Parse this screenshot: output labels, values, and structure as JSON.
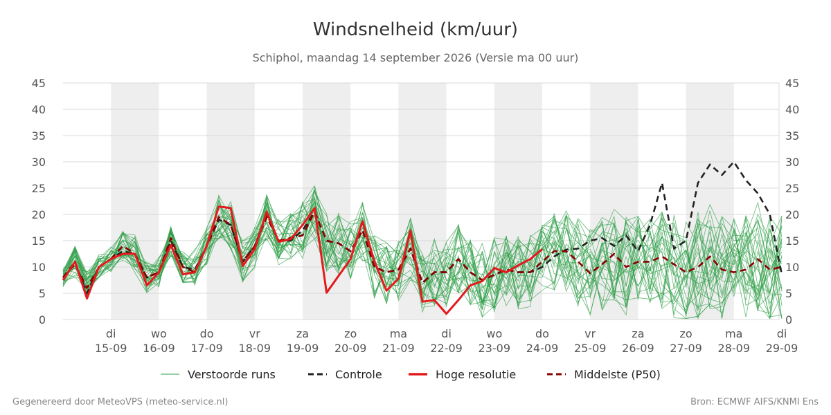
{
  "chart_data": {
    "type": "line",
    "title": "Windsnelheid (km/uur)",
    "subtitle": "Schiphol, maandag 14 september 2026 (Versie ma 00 uur)",
    "ylim": [
      0,
      45
    ],
    "yticks": [
      0,
      5,
      10,
      15,
      20,
      25,
      30,
      35,
      40,
      45
    ],
    "xlim": [
      0,
      15.5
    ],
    "day_labels": [
      {
        "x": 1,
        "top": "di",
        "bottom": "15-09"
      },
      {
        "x": 2,
        "top": "wo",
        "bottom": "16-09"
      },
      {
        "x": 3,
        "top": "do",
        "bottom": "17-09"
      },
      {
        "x": 4,
        "top": "vr",
        "bottom": "18-09"
      },
      {
        "x": 5,
        "top": "za",
        "bottom": "19-09"
      },
      {
        "x": 6,
        "top": "zo",
        "bottom": "20-09"
      },
      {
        "x": 7,
        "top": "ma",
        "bottom": "21-09"
      },
      {
        "x": 8,
        "top": "di",
        "bottom": "22-09"
      },
      {
        "x": 9,
        "top": "wo",
        "bottom": "23-09"
      },
      {
        "x": 10,
        "top": "do",
        "bottom": "24-09"
      },
      {
        "x": 11,
        "top": "vr",
        "bottom": "25-09"
      },
      {
        "x": 12,
        "top": "za",
        "bottom": "26-09"
      },
      {
        "x": 13,
        "top": "zo",
        "bottom": "27-09"
      },
      {
        "x": 14,
        "top": "ma",
        "bottom": "28-09"
      },
      {
        "x": 15,
        "top": "di",
        "bottom": "29-09"
      }
    ],
    "shaded_bands": [
      [
        1,
        2
      ],
      [
        3,
        4
      ],
      [
        5,
        6
      ],
      [
        7,
        8
      ],
      [
        9,
        10
      ],
      [
        11,
        12
      ],
      [
        13,
        14
      ]
    ],
    "grid": true,
    "legend_position": "bottom",
    "series": [
      {
        "name": "Hoge resolutie",
        "color": "#e31a1c",
        "style": "solid",
        "x": [
          0,
          0.25,
          0.5,
          0.75,
          1,
          1.25,
          1.5,
          1.75,
          2,
          2.25,
          2.5,
          2.75,
          3,
          3.25,
          3.5,
          3.75,
          4,
          4.25,
          4.5,
          4.75,
          5,
          5.25,
          5.5,
          5.75,
          6,
          6.25,
          6.5,
          6.75,
          7,
          7.25,
          7.5,
          7.75,
          8,
          8.25,
          8.5,
          8.75,
          9,
          9.25,
          9.5,
          9.75,
          10
        ],
        "y": [
          7.5,
          11,
          4,
          10,
          11.5,
          12.5,
          12.5,
          6.5,
          9,
          14.2,
          8.6,
          9,
          14,
          21.5,
          21.2,
          10.2,
          13.4,
          20.5,
          14.8,
          15.3,
          18,
          21.2,
          5.1,
          8.3,
          11.5,
          18.7,
          11,
          5.5,
          7.8,
          16.9,
          3.4,
          3.7,
          1.1,
          3.7,
          6.5,
          7.3,
          9.8,
          9,
          10.3,
          11.5,
          13.4
        ]
      },
      {
        "name": "Controle",
        "color": "#222222",
        "style": "dash",
        "x": [
          0,
          0.25,
          0.5,
          0.75,
          1,
          1.25,
          1.5,
          1.75,
          2,
          2.25,
          2.5,
          2.75,
          3,
          3.25,
          3.5,
          3.75,
          4,
          4.25,
          4.5,
          4.75,
          5,
          5.25,
          5.5,
          5.75,
          6,
          6.25,
          6.5,
          6.75,
          7,
          7.25,
          7.5,
          7.75,
          8,
          8.25,
          8.5,
          8.75,
          9,
          9.25,
          9.5,
          9.75,
          10,
          10.25,
          10.5,
          10.75,
          11,
          11.25,
          11.5,
          11.75,
          12,
          12.25,
          12.5,
          12.75,
          13,
          13.25,
          13.5,
          13.75,
          14,
          14.25,
          14.5,
          14.75,
          15
        ],
        "y": [
          8,
          11,
          5,
          10,
          11.5,
          13,
          12.5,
          8,
          9,
          15,
          10,
          9.5,
          14,
          19,
          18,
          11,
          14,
          20,
          15,
          15,
          17,
          20.5,
          15,
          14.5,
          13,
          17,
          10,
          9,
          9.5,
          13.5,
          7,
          9,
          9,
          11.5,
          9,
          7.5,
          8.5,
          9.5,
          9,
          9,
          10,
          12,
          13.3,
          13.5,
          15,
          15.5,
          14,
          16,
          13,
          18,
          26,
          13.5,
          15,
          26,
          29.5,
          27.5,
          30,
          26.5,
          24,
          20,
          8.5
        ]
      },
      {
        "name": "Middelste (P50)",
        "color": "#8b0000",
        "style": "dash",
        "x": [
          0,
          0.25,
          0.5,
          0.75,
          1,
          1.25,
          1.5,
          1.75,
          2,
          2.25,
          2.5,
          2.75,
          3,
          3.25,
          3.5,
          3.75,
          4,
          4.25,
          4.5,
          4.75,
          5,
          5.25,
          5.5,
          5.75,
          6,
          6.25,
          6.5,
          6.75,
          7,
          7.25,
          7.5,
          7.75,
          8,
          8.25,
          8.5,
          8.75,
          9,
          9.25,
          9.5,
          9.75,
          10,
          10.25,
          10.5,
          10.75,
          11,
          11.25,
          11.5,
          11.75,
          12,
          12.25,
          12.5,
          12.75,
          13,
          13.25,
          13.5,
          13.75,
          14,
          14.25,
          14.5,
          14.75,
          15
        ],
        "y": [
          8,
          10.5,
          6,
          10,
          11.5,
          14,
          12.5,
          8,
          9,
          15.5,
          10,
          9,
          14,
          19.5,
          18,
          11,
          14,
          19.5,
          15,
          15.5,
          16,
          20.5,
          15,
          14.5,
          13,
          17,
          10,
          9,
          9.5,
          13.5,
          7,
          9,
          9,
          11.5,
          9,
          7.5,
          8.5,
          9.5,
          9,
          9,
          11,
          13,
          13,
          11,
          8.8,
          10.5,
          12.5,
          10,
          11,
          11,
          12,
          10.5,
          9,
          10,
          12,
          9.5,
          9,
          9.5,
          11.5,
          9.5,
          10
        ]
      }
    ],
    "ensemble": {
      "name": "Verstoorde runs",
      "color": "#2e9e47",
      "members": 30,
      "x": [
        0,
        0.25,
        0.5,
        0.75,
        1,
        1.25,
        1.5,
        1.75,
        2,
        2.25,
        2.5,
        2.75,
        3,
        3.25,
        3.5,
        3.75,
        4,
        4.25,
        4.5,
        4.75,
        5,
        5.25,
        5.5,
        5.75,
        6,
        6.25,
        6.5,
        6.75,
        7,
        7.25,
        7.5,
        7.75,
        8,
        8.25,
        8.5,
        8.75,
        9,
        9.25,
        9.5,
        9.75,
        10,
        10.25,
        10.5,
        10.75,
        11,
        11.25,
        11.5,
        11.75,
        12,
        12.25,
        12.5,
        12.75,
        13,
        13.25,
        13.5,
        13.75,
        14,
        14.25,
        14.5,
        14.75,
        15
      ],
      "center": [
        8,
        11,
        7,
        10,
        11.5,
        14,
        12.5,
        8,
        9,
        15,
        10,
        10,
        14,
        19.5,
        18,
        11,
        14,
        19.5,
        15,
        15.5,
        17,
        20.5,
        15,
        14.5,
        13,
        17,
        10,
        9,
        9.5,
        13.5,
        7,
        9,
        9,
        11.5,
        9,
        7.5,
        8.5,
        9.5,
        9,
        9,
        11,
        13,
        13,
        11,
        8.8,
        10.5,
        12.5,
        10,
        11,
        11,
        12,
        10.5,
        9,
        10,
        12,
        9.5,
        9,
        9.5,
        11.5,
        9.5,
        10
      ],
      "spread": [
        1.5,
        2.5,
        2,
        2,
        2,
        2.5,
        3,
        2.5,
        2.5,
        2.5,
        2.5,
        3,
        3,
        3.5,
        4,
        3.5,
        3.5,
        4,
        4,
        4,
        4.5,
        4.5,
        5,
        5,
        5,
        5,
        5,
        5,
        5,
        5,
        5.5,
        5.5,
        5.5,
        5.5,
        5.5,
        6,
        6,
        6,
        6,
        6,
        6,
        6.5,
        6.5,
        7,
        7,
        7.5,
        7.5,
        8,
        8,
        8,
        8.5,
        8.5,
        8.5,
        9,
        9,
        9,
        9,
        9,
        9,
        9,
        9
      ]
    },
    "legend": [
      {
        "label": "Verstoorde runs",
        "color": "#2e9e47",
        "style": "thin"
      },
      {
        "label": "Controle",
        "color": "#222222",
        "style": "dash"
      },
      {
        "label": "Hoge resolutie",
        "color": "#e31a1c",
        "style": "solid"
      },
      {
        "label": "Middelste (P50)",
        "color": "#8b0000",
        "style": "dash"
      }
    ]
  },
  "footer": {
    "left": "Gegenereerd door MeteoVPS (meteo-service.nl)",
    "right": "Bron: ECMWF AIFS/KNMI Ens"
  }
}
